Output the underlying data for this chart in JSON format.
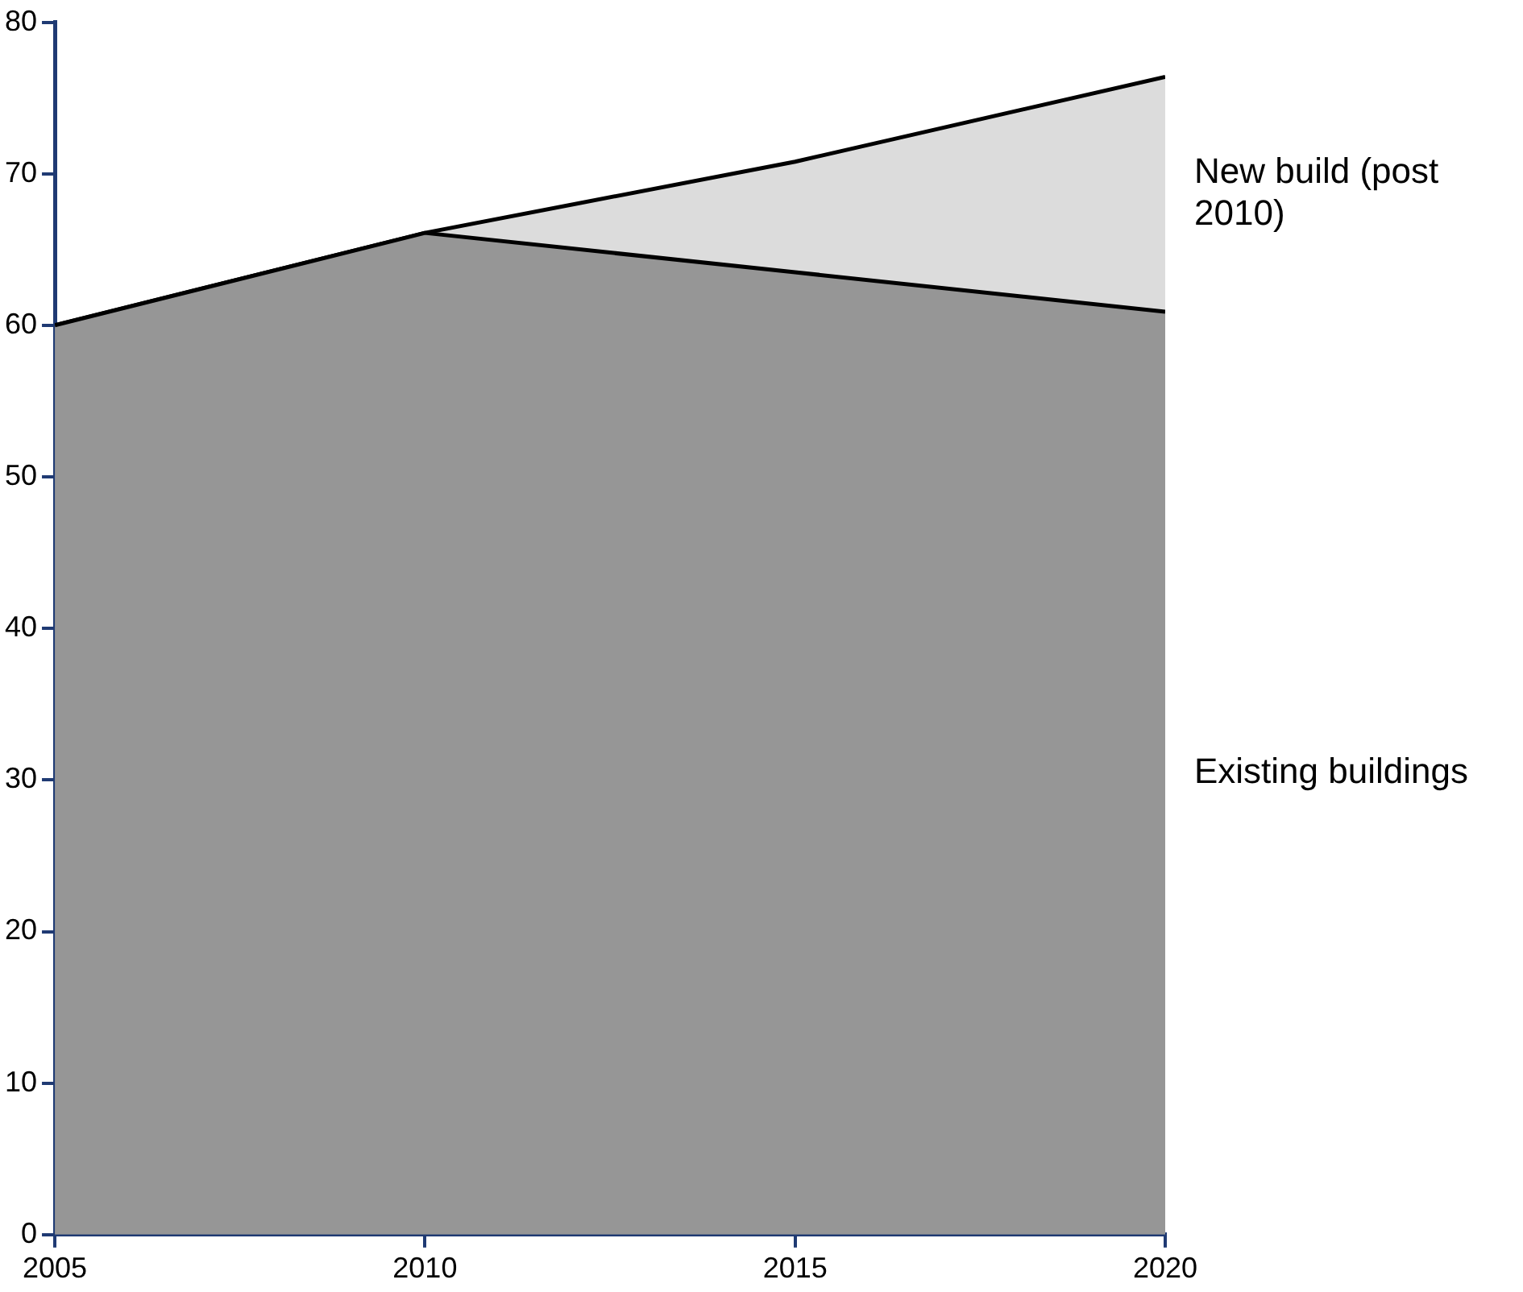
{
  "chart_data": {
    "type": "area",
    "stacked": true,
    "x": [
      2005,
      2010,
      2015,
      2020
    ],
    "series": [
      {
        "name": "Existing buildings",
        "color": "#969696",
        "values": [
          60,
          66.1,
          63.5,
          60.9
        ]
      },
      {
        "name": "New build (post 2010)",
        "color": "#dcdcdc",
        "values": [
          0,
          0,
          7.3,
          15.5
        ]
      }
    ],
    "xlim": [
      2005,
      2020
    ],
    "xticks": [
      2005,
      2010,
      2015,
      2020
    ],
    "ylim": [
      0,
      80
    ],
    "yticks": [
      0,
      10,
      20,
      30,
      40,
      50,
      60,
      70,
      80
    ],
    "grid": false,
    "legend": false
  }
}
